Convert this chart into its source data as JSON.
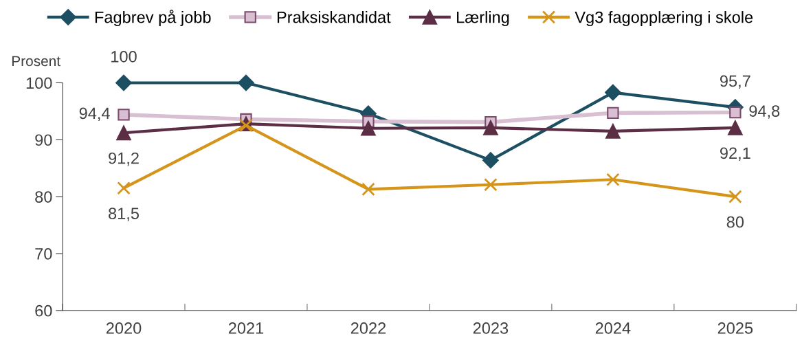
{
  "chart_data": {
    "type": "line",
    "ylabel": "Prosent",
    "categories": [
      "2020",
      "2021",
      "2022",
      "2023",
      "2024",
      "2025"
    ],
    "ylim": [
      60,
      100
    ],
    "yticks": [
      60,
      70,
      80,
      90,
      100
    ],
    "grid": false,
    "legend": "top",
    "series": [
      {
        "name": "Fagbrev på jobb",
        "color": "#1d4f62",
        "marker": "diamond",
        "values": [
          100,
          100,
          94.6,
          86.4,
          98.3,
          95.7
        ],
        "value_labels": [
          "100",
          null,
          null,
          null,
          null,
          "95,7"
        ]
      },
      {
        "name": "Praksiskandidat",
        "color": "#d9bfd2",
        "marker": "square",
        "values": [
          94.4,
          93.6,
          93.2,
          93.1,
          94.7,
          94.8
        ],
        "value_labels": [
          "94,4",
          null,
          null,
          null,
          null,
          "94,8"
        ]
      },
      {
        "name": "Lærling",
        "color": "#5c2e45",
        "marker": "triangle",
        "values": [
          91.2,
          92.8,
          92.0,
          92.1,
          91.5,
          92.1
        ],
        "value_labels": [
          "91,2",
          null,
          null,
          null,
          null,
          "92,1"
        ]
      },
      {
        "name": "Vg3 fagopplæring i skole",
        "color": "#d4951a",
        "marker": "cross",
        "values": [
          81.5,
          92.5,
          81.3,
          82.1,
          83.0,
          80
        ],
        "value_labels": [
          "81,5",
          null,
          null,
          null,
          null,
          "80"
        ]
      }
    ]
  }
}
